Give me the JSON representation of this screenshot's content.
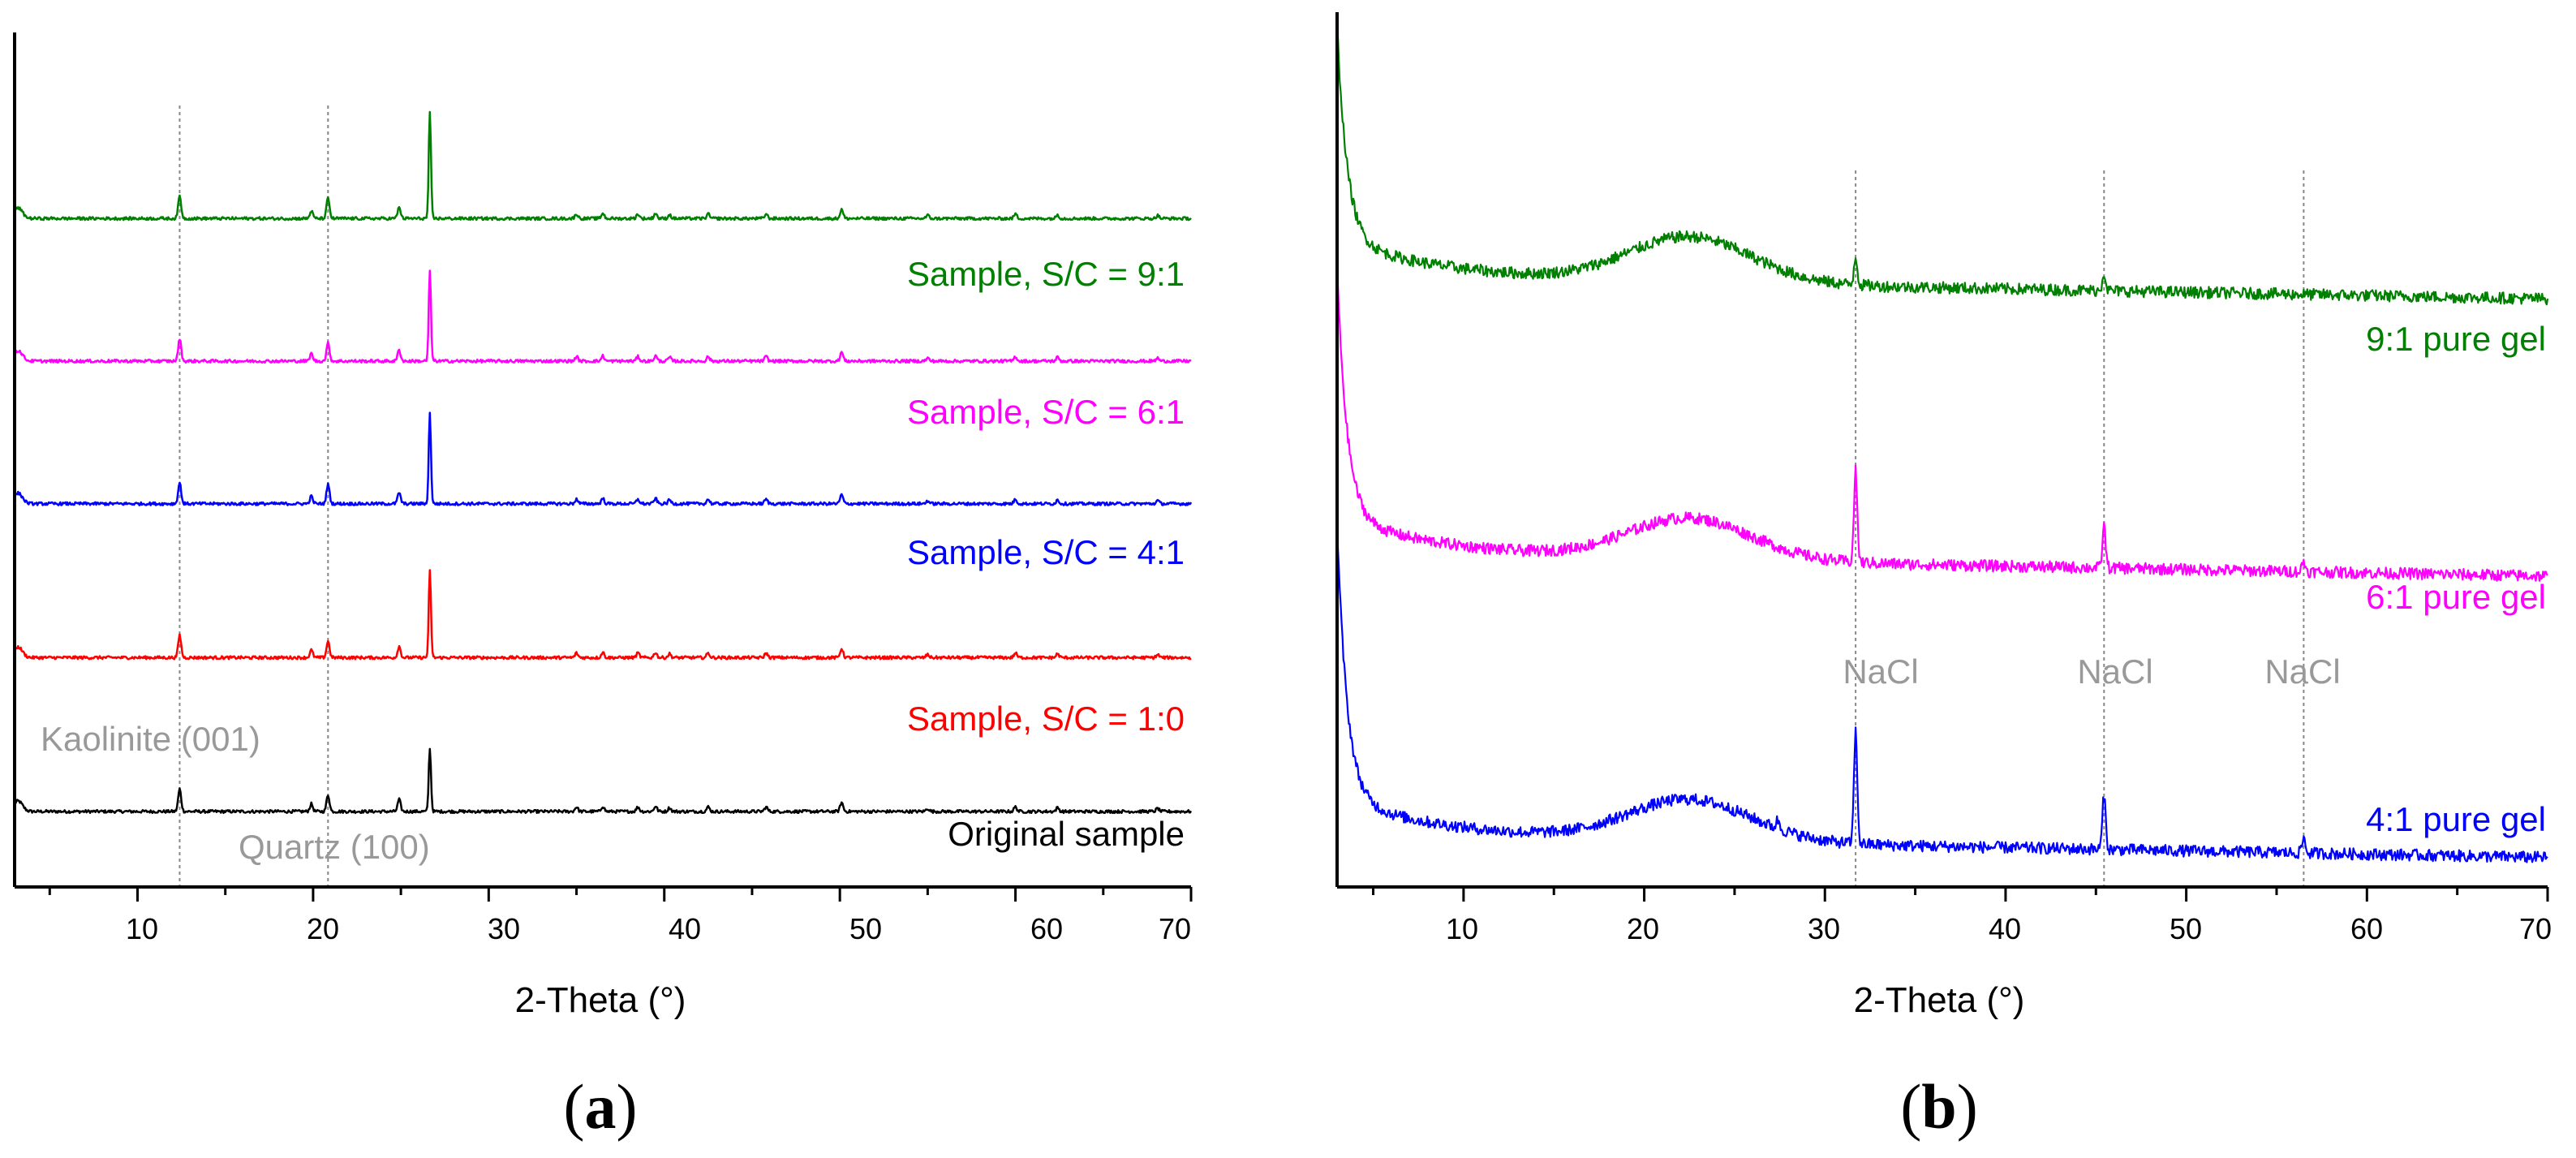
{
  "chart_data": [
    {
      "type": "line",
      "panel": "a",
      "panel_label": "a",
      "xlabel": "2-Theta (°)",
      "ylabel": "",
      "xlim": [
        3,
        70
      ],
      "ylim": [
        0,
        1
      ],
      "x_ticks": [
        10,
        20,
        30,
        40,
        50,
        60,
        70
      ],
      "x_tick_labels": [
        "10",
        "20",
        "30",
        "40",
        "50",
        "60",
        "70"
      ],
      "grid": false,
      "reference_lines": [
        {
          "x": 12.4,
          "label": "Kaolinite (001)",
          "label_x": 11.5
        },
        {
          "x": 20.85,
          "label": "Quartz (100)",
          "label_x": 22.5
        }
      ],
      "peak_positions": [
        12.4,
        19.9,
        20.85,
        24.9,
        26.65,
        35.0,
        36.5,
        38.5,
        39.5,
        40.3,
        42.5,
        45.8,
        50.1,
        55.0,
        60.0,
        62.4,
        68.1
      ],
      "series": [
        {
          "name": "Original sample",
          "label": "Original sample",
          "color": "#000000",
          "offset": 0.0,
          "peak_heights": [
            0.03,
            0.01,
            0.022,
            0.016,
            0.085,
            0.006,
            0.007,
            0.006,
            0.007,
            0.005,
            0.006,
            0.006,
            0.012,
            0.004,
            0.006,
            0.005,
            0.004
          ]
        },
        {
          "name": "Sample, S/C = 1:0",
          "label": "Sample, S/C = 1:0",
          "color": "#ff0000",
          "offset": 0.205,
          "peak_heights": [
            0.03,
            0.01,
            0.022,
            0.015,
            0.115,
            0.006,
            0.007,
            0.006,
            0.007,
            0.005,
            0.006,
            0.006,
            0.012,
            0.004,
            0.006,
            0.005,
            0.004
          ]
        },
        {
          "name": "Sample, S/C = 4:1",
          "label": "Sample, S/C = 4:1",
          "color": "#0000ff",
          "offset": 0.41,
          "peak_heights": [
            0.028,
            0.01,
            0.026,
            0.015,
            0.12,
            0.006,
            0.007,
            0.006,
            0.007,
            0.005,
            0.006,
            0.006,
            0.012,
            0.004,
            0.006,
            0.005,
            0.004
          ]
        },
        {
          "name": "Sample, S/C = 6:1",
          "label": "Sample, S/C = 6:1",
          "color": "#ff00ff",
          "offset": 0.6,
          "peak_heights": [
            0.03,
            0.01,
            0.024,
            0.015,
            0.12,
            0.006,
            0.007,
            0.006,
            0.007,
            0.005,
            0.006,
            0.006,
            0.012,
            0.004,
            0.006,
            0.005,
            0.004
          ]
        },
        {
          "name": "Sample, S/C = 9:1",
          "label": "Sample, S/C = 9:1",
          "color": "#008000",
          "offset": 0.79,
          "peak_heights": [
            0.03,
            0.01,
            0.027,
            0.015,
            0.14,
            0.006,
            0.007,
            0.006,
            0.007,
            0.005,
            0.006,
            0.006,
            0.012,
            0.004,
            0.006,
            0.005,
            0.004
          ]
        }
      ]
    },
    {
      "type": "line",
      "panel": "b",
      "panel_label": "b",
      "xlabel": "2-Theta (°)",
      "ylabel": "",
      "xlim": [
        3,
        70
      ],
      "ylim": [
        0,
        1
      ],
      "x_ticks": [
        10,
        20,
        30,
        40,
        50,
        60,
        70
      ],
      "x_tick_labels": [
        "10",
        "20",
        "30",
        "40",
        "50",
        "60",
        "70"
      ],
      "grid": false,
      "reference_lines": [
        {
          "x": 31.7,
          "label": "NaCl"
        },
        {
          "x": 45.45,
          "label": "NaCl"
        },
        {
          "x": 56.5,
          "label": "NaCl"
        }
      ],
      "hump_center": 22.5,
      "series": [
        {
          "name": "4:1 pure gel",
          "label": "4:1 pure gel",
          "color": "#0000ff",
          "baseline": 0.03,
          "hump_height": 0.05,
          "low_angle_height": 0.33,
          "peaks": [
            [
              31.7,
              0.135
            ],
            [
              45.45,
              0.065
            ],
            [
              56.5,
              0.018
            ],
            [
              27.4,
              0.01
            ]
          ]
        },
        {
          "name": "6:1 pure gel",
          "label": "6:1 pure gel",
          "color": "#ff00ff",
          "baseline": 0.37,
          "hump_height": 0.05,
          "low_angle_height": 0.3,
          "peaks": [
            [
              31.7,
              0.11
            ],
            [
              45.45,
              0.05
            ],
            [
              56.5,
              0.012
            ]
          ]
        },
        {
          "name": "9:1 pure gel",
          "label": "9:1 pure gel",
          "color": "#008000",
          "baseline": 0.705,
          "hump_height": 0.055,
          "low_angle_height": 0.26,
          "peaks": [
            [
              31.7,
              0.035
            ],
            [
              45.45,
              0.022
            ]
          ]
        }
      ]
    }
  ]
}
